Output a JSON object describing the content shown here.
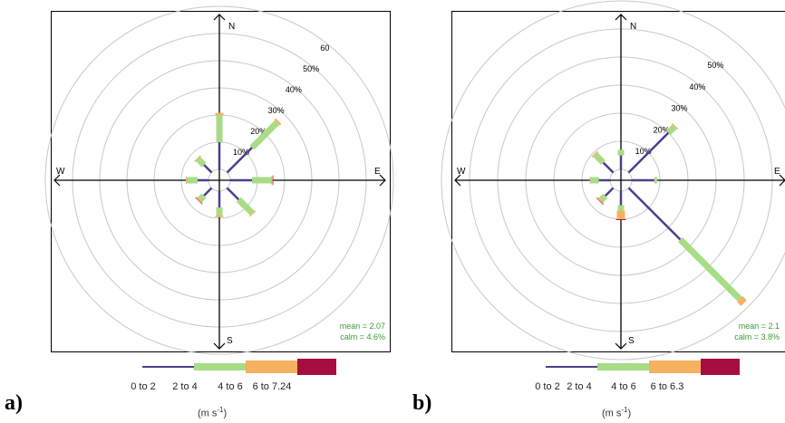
{
  "legend": {
    "units_prefix": "(m s",
    "units_sup": "-1",
    "units_suffix": ")"
  },
  "colors": {
    "bin1": "#4b3f8f",
    "bin2": "#a8dc85",
    "bin3": "#f5b160",
    "bin4": "#a60f3d",
    "grid": "#c8c8c8",
    "stats": "#3a9a3a",
    "axis": "#000000"
  },
  "chart_data": [
    {
      "type": "windrose",
      "panel_label": "a)",
      "directions": [
        "N",
        "NE",
        "E",
        "SE",
        "S",
        "SW",
        "W",
        "NW"
      ],
      "compass_labels": {
        "N": "N",
        "E": "E",
        "S": "S",
        "W": "W"
      },
      "ring_labels": [
        "10%",
        "20%",
        "30%",
        "40%",
        "50%",
        "60"
      ],
      "ring_values": [
        10,
        20,
        30,
        40,
        50,
        60
      ],
      "speed_bins": [
        "0 to 2",
        "2 to 4",
        "4 to 6",
        "6 to 7.24"
      ],
      "series": [
        {
          "name": "0 to 2",
          "values": [
            10,
            13,
            8,
            6,
            6,
            4,
            4,
            4
          ]
        },
        {
          "name": "2 to 4",
          "values": [
            10,
            13,
            7,
            7,
            3,
            2,
            4,
            3
          ]
        },
        {
          "name": "4 to 6",
          "values": [
            0.8,
            0.8,
            0.6,
            0.5,
            0.6,
            0.6,
            0.3,
            0.5
          ]
        },
        {
          "name": "6 to 7.24",
          "values": [
            0,
            0,
            0.2,
            0,
            0,
            0.2,
            0,
            0
          ]
        }
      ],
      "stats": {
        "mean": "mean = 2.07",
        "calm": "calm = 4.6%"
      }
    },
    {
      "type": "windrose",
      "panel_label": "b)",
      "directions": [
        "N",
        "NE",
        "E",
        "SE",
        "S",
        "SW",
        "W",
        "NW"
      ],
      "compass_labels": {
        "N": "N",
        "E": "E",
        "S": "S",
        "W": "W"
      },
      "ring_labels": [
        "10%",
        "20%",
        "30%",
        "40%",
        "50%"
      ],
      "ring_values": [
        10,
        20,
        30,
        40,
        50
      ],
      "speed_bins": [
        "0 to 2",
        "2 to 4",
        "4 to 6",
        "6 to 6.3"
      ],
      "series": [
        {
          "name": "0 to 2",
          "values": [
            5,
            20,
            8,
            26,
            5,
            4,
            4,
            5
          ]
        },
        {
          "name": "2 to 4",
          "values": [
            2,
            3,
            1,
            30,
            2,
            2,
            3,
            4
          ]
        },
        {
          "name": "4 to 6",
          "values": [
            0,
            0.5,
            0,
            2,
            3,
            0.6,
            0.2,
            0.5
          ]
        },
        {
          "name": "6 to 6.3",
          "values": [
            0,
            0,
            0,
            0,
            0.3,
            0.2,
            0,
            0
          ]
        }
      ],
      "stats": {
        "mean": "mean = 2.1",
        "calm": "calm = 3.8%"
      }
    }
  ]
}
